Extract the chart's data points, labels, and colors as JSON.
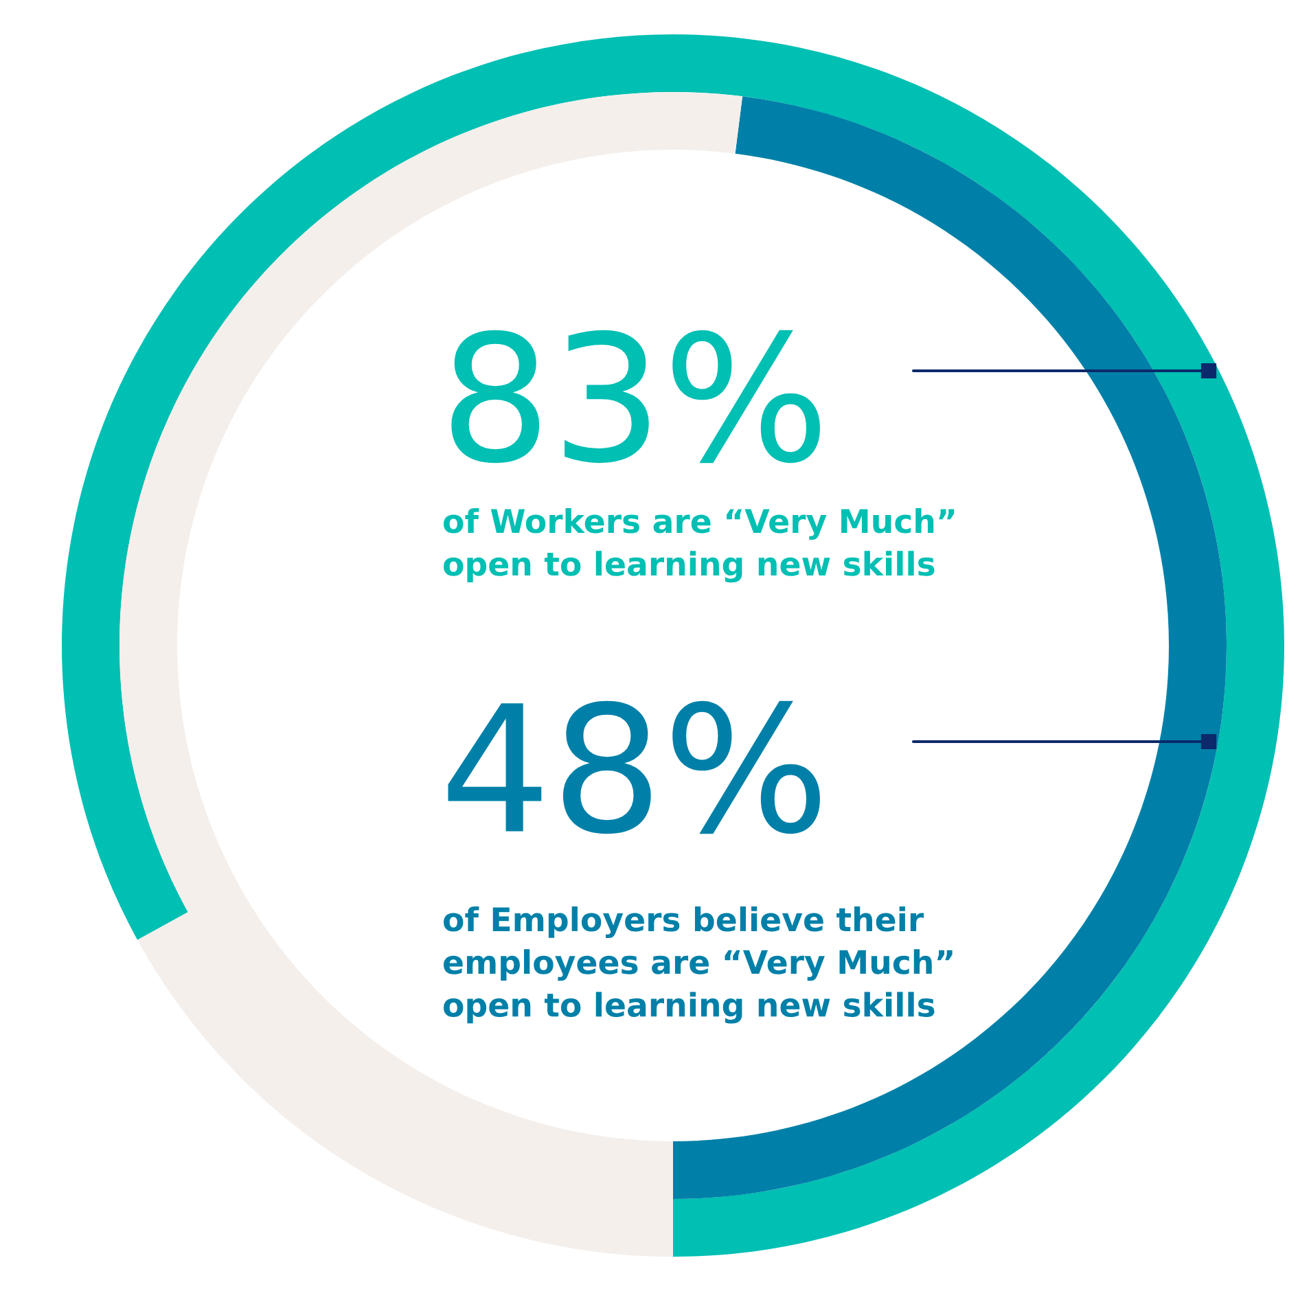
{
  "chart_data": {
    "type": "donut",
    "categories": [
      null,
      null
    ],
    "series": [
      {
        "colors": [
          "#00bfb3",
          "#f4efeb"
        ],
        "values": [
          83,
          17
        ],
        "value_labels": [
          "83%",
          null
        ]
      },
      {
        "colors": [
          "#0080a8",
          "#f4efeb"
        ],
        "values": [
          48,
          52
        ],
        "value_labels": [
          "48%",
          null
        ]
      }
    ],
    "annotations": [
      "of Workers are “Very Much”\nopen to learning new skills",
      "of Employers believe their\nemployees are “Very Much”\nopen to learning new skills"
    ]
  }
}
